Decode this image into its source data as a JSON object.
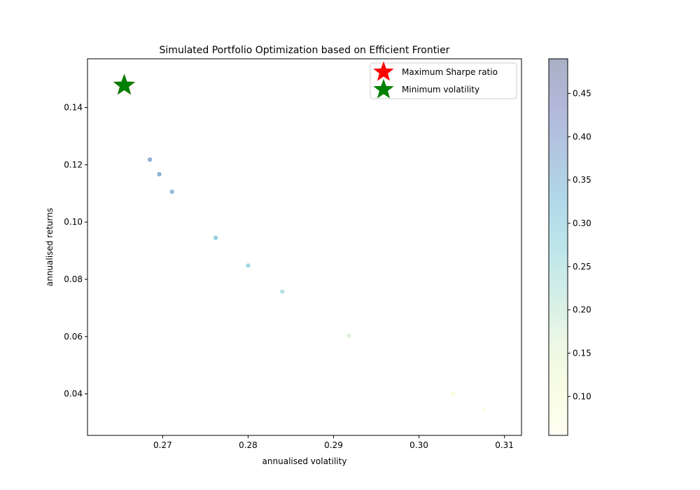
{
  "chart_data": {
    "type": "scatter",
    "title": "Simulated Portfolio Optimization based on Efficient Frontier",
    "xlabel": "annualised volatility",
    "ylabel": "annualised returns",
    "xlim": [
      0.2612,
      0.312
    ],
    "ylim": [
      0.0255,
      0.157
    ],
    "xticks": [
      0.27,
      0.28,
      0.29,
      0.3,
      0.31
    ],
    "xtick_labels": [
      "0.27",
      "0.28",
      "0.29",
      "0.30",
      "0.31"
    ],
    "yticks": [
      0.04,
      0.06,
      0.08,
      0.1,
      0.12,
      0.14
    ],
    "ytick_labels": [
      "0.04",
      "0.06",
      "0.08",
      "0.10",
      "0.12",
      "0.14"
    ],
    "grid": false,
    "colormap": "YlGnBu",
    "colorbar": {
      "range": [
        0.055,
        0.49
      ],
      "ticks": [
        0.1,
        0.15,
        0.2,
        0.25,
        0.3,
        0.35,
        0.4,
        0.45
      ],
      "tick_labels": [
        "0.10",
        "0.15",
        "0.20",
        "0.25",
        "0.30",
        "0.35",
        "0.40",
        "0.45"
      ]
    },
    "points": [
      {
        "x": 0.2685,
        "y": 0.1218,
        "c": 0.385
      },
      {
        "x": 0.2696,
        "y": 0.1167,
        "c": 0.37
      },
      {
        "x": 0.2711,
        "y": 0.1106,
        "c": 0.35
      },
      {
        "x": 0.2762,
        "y": 0.0945,
        "c": 0.3
      },
      {
        "x": 0.28,
        "y": 0.0848,
        "c": 0.27
      },
      {
        "x": 0.284,
        "y": 0.0757,
        "c": 0.24
      },
      {
        "x": 0.2918,
        "y": 0.0603,
        "c": 0.17
      },
      {
        "x": 0.304,
        "y": 0.0401,
        "c": 0.09
      },
      {
        "x": 0.3076,
        "y": 0.0345,
        "c": 0.07
      }
    ],
    "markers": [
      {
        "name": "Maximum Sharpe ratio",
        "color": "#ff0000",
        "x": 0.2655,
        "y": 0.1477,
        "marker": "star"
      },
      {
        "name": "Minimum volatility",
        "color": "#008000",
        "x": 0.2655,
        "y": 0.1477,
        "marker": "star"
      }
    ],
    "legend_placement": "top-right"
  }
}
